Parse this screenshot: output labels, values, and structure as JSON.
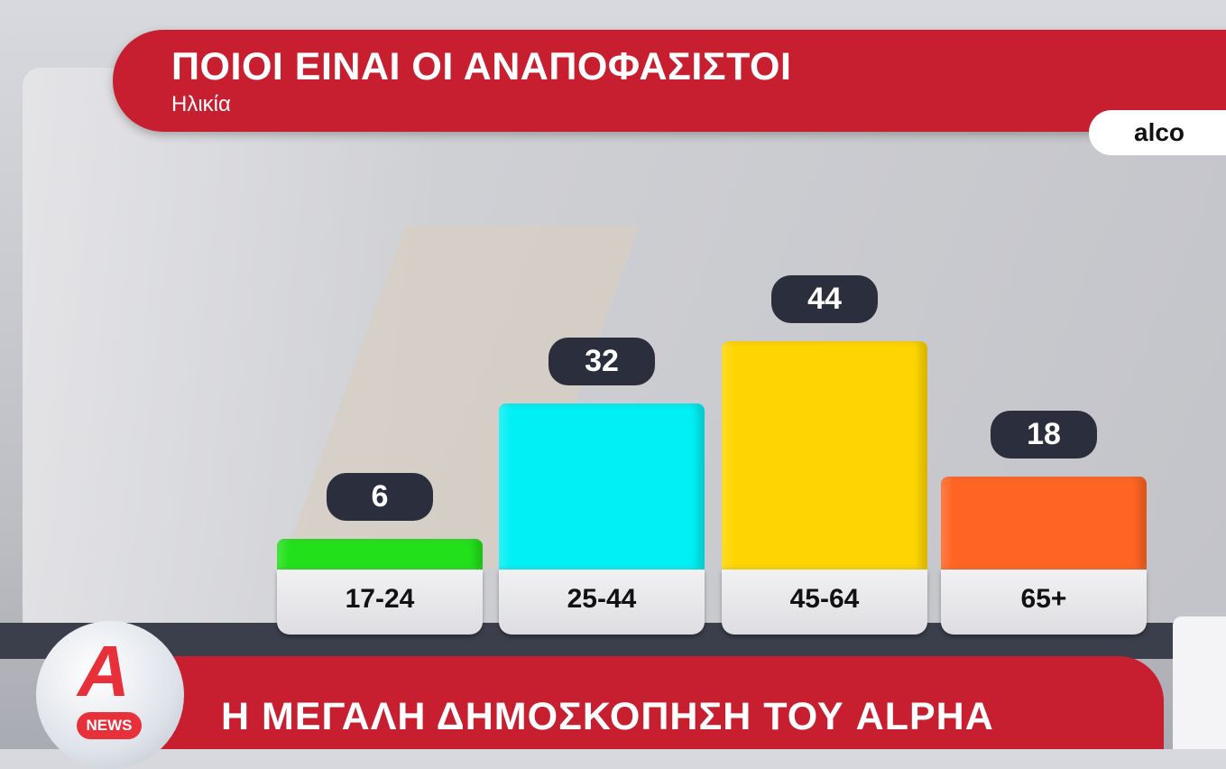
{
  "header": {
    "title": "ΠΟΙΟΙ ΕΙΝΑΙ ΟΙ ΑΝΑΠΟΦΑΣΙΣΤΟΙ",
    "subtitle": "Ηλικία",
    "source": "alco"
  },
  "footer": {
    "text": "Η ΜΕΓΑΛΗ ΔΗΜΟΣΚΟΠΗΣΗ ΤΟΥ ALPHA",
    "logo_text": "NEWS"
  },
  "chart_data": {
    "type": "bar",
    "title": "ΠΟΙΟΙ ΕΙΝΑΙ ΟΙ ΑΝΑΠΟΦΑΣΙΣΤΟΙ",
    "subtitle": "Ηλικία",
    "categories": [
      "17-24",
      "25-44",
      "45-64",
      "65+"
    ],
    "values": [
      6,
      32,
      44,
      18
    ],
    "value_labels": [
      "6",
      "32",
      "44",
      "18"
    ],
    "colors": [
      "#22e01a",
      "#00f0f5",
      "#ffd500",
      "#ff6422"
    ],
    "grid": false,
    "ylim": [
      0,
      50
    ]
  }
}
